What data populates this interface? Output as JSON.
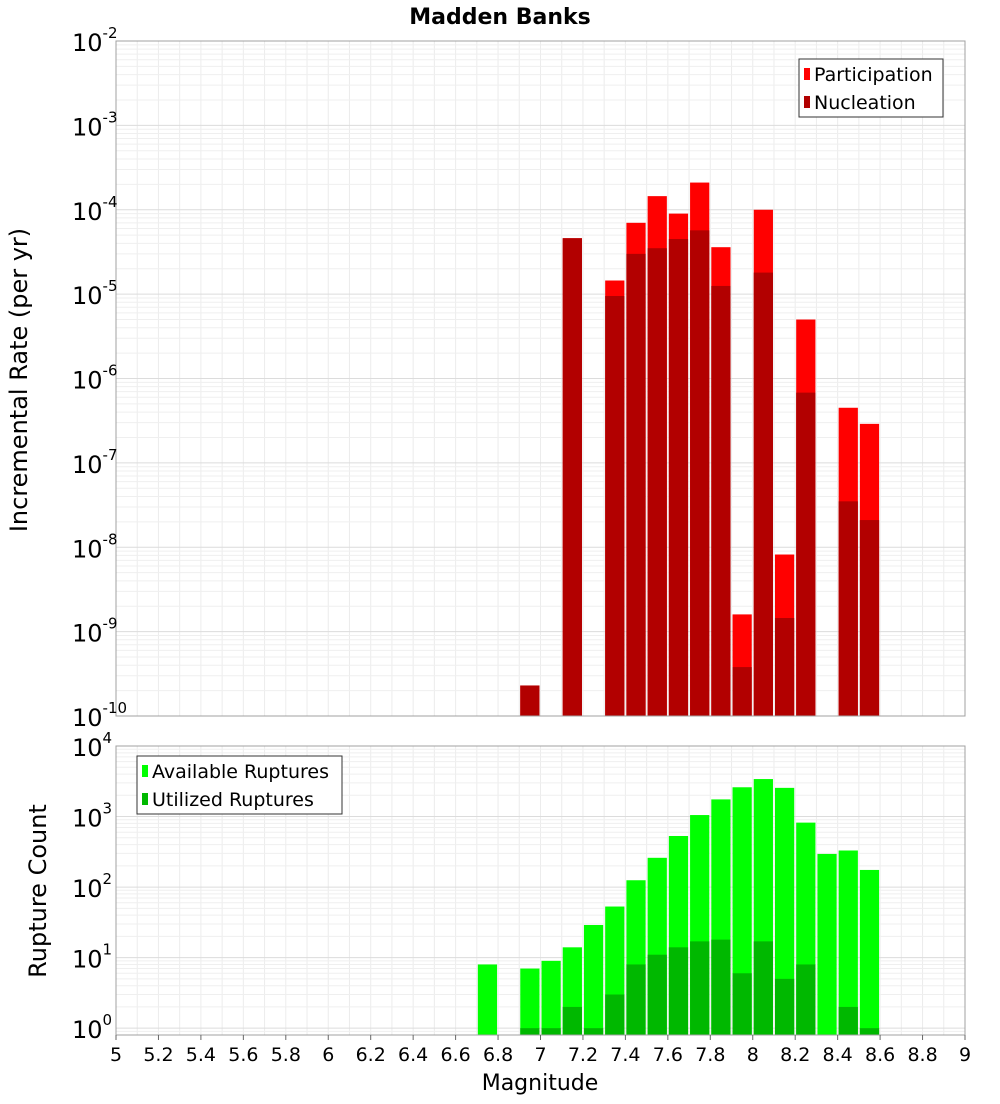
{
  "chart_data": [
    {
      "type": "bar",
      "title": "Madden Banks",
      "ylabel": "Incremental Rate (per yr)",
      "xlabel": "",
      "xlim": [
        5,
        9
      ],
      "ylim": [
        1e-10,
        0.01
      ],
      "yscale": "log",
      "bar_width": 0.1,
      "grid": true,
      "legend_position": "top-right",
      "y_tick_labels": [
        {
          "base": "10",
          "exp": "-2",
          "value": 0.01
        },
        {
          "base": "10",
          "exp": "-3",
          "value": 0.001
        },
        {
          "base": "10",
          "exp": "-4",
          "value": 0.0001
        },
        {
          "base": "10",
          "exp": "-5",
          "value": 1e-05
        },
        {
          "base": "10",
          "exp": "-6",
          "value": 1e-06
        },
        {
          "base": "10",
          "exp": "-7",
          "value": 1e-07
        },
        {
          "base": "10",
          "exp": "-8",
          "value": 1e-08
        },
        {
          "base": "10",
          "exp": "-9",
          "value": 1e-09
        },
        {
          "base": "10",
          "exp": "-10",
          "value": 1e-10
        }
      ],
      "x": [
        6.95,
        7.15,
        7.35,
        7.45,
        7.55,
        7.65,
        7.75,
        7.85,
        7.95,
        8.05,
        8.15,
        8.25,
        8.45,
        8.55
      ],
      "series": [
        {
          "name": "Participation",
          "color": "#ff0000",
          "values": [
            2.3e-10,
            4.6e-05,
            1.45e-05,
            7e-05,
            0.000145,
            9e-05,
            0.00021,
            3.6e-05,
            1.6e-09,
            0.0001,
            8.2e-09,
            5e-06,
            4.5e-07,
            2.9e-07
          ]
        },
        {
          "name": "Nucleation",
          "color": "#b20000",
          "values": [
            2.3e-10,
            4.6e-05,
            9.5e-06,
            3e-05,
            3.5e-05,
            4.5e-05,
            5.7e-05,
            1.25e-05,
            3.8e-10,
            1.8e-05,
            1.45e-09,
            6.8e-07,
            3.5e-08,
            2.1e-08
          ]
        }
      ]
    },
    {
      "type": "bar",
      "title": "",
      "ylabel": "Rupture Count",
      "xlabel": "Magnitude",
      "xlim": [
        5,
        9
      ],
      "ylim": [
        0.8,
        10000
      ],
      "yscale": "log",
      "bar_width": 0.1,
      "grid": true,
      "legend_position": "top-left",
      "x_tick_labels": [
        "5",
        "5.2",
        "5.4",
        "5.6",
        "5.8",
        "6",
        "6.2",
        "6.4",
        "6.6",
        "6.8",
        "7",
        "7.2",
        "7.4",
        "7.6",
        "7.8",
        "8",
        "8.2",
        "8.4",
        "8.6",
        "8.8",
        "9"
      ],
      "y_tick_labels": [
        {
          "base": "10",
          "exp": "4",
          "value": 10000
        },
        {
          "base": "10",
          "exp": "3",
          "value": 1000
        },
        {
          "base": "10",
          "exp": "2",
          "value": 100
        },
        {
          "base": "10",
          "exp": "1",
          "value": 10
        },
        {
          "base": "10",
          "exp": "0",
          "value": 1
        }
      ],
      "x": [
        6.75,
        6.95,
        7.05,
        7.15,
        7.25,
        7.35,
        7.45,
        7.55,
        7.65,
        7.75,
        7.85,
        7.95,
        8.05,
        8.15,
        8.25,
        8.35,
        8.45,
        8.55
      ],
      "series": [
        {
          "name": "Available Ruptures",
          "color": "#00ff00",
          "values": [
            8,
            7,
            9,
            14,
            29,
            53,
            125,
            260,
            530,
            1050,
            1750,
            2600,
            3400,
            2550,
            820,
            295,
            330,
            175
          ]
        },
        {
          "name": "Utilized Ruptures",
          "color": "#00b800",
          "values": [
            0,
            1,
            1,
            2,
            1,
            3,
            8,
            11,
            14,
            17,
            18,
            6,
            17,
            5,
            8,
            0,
            2,
            1
          ]
        }
      ]
    }
  ]
}
